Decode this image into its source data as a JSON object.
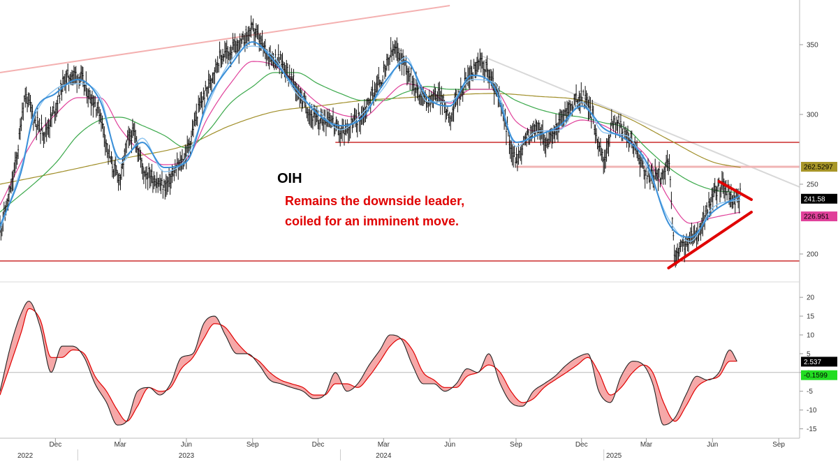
{
  "annotation": {
    "ticker": "OIH",
    "line1": "Remains the downside leader,",
    "line2": "coiled for an imminent move."
  },
  "colors": {
    "price": "#111111",
    "ma_fast": "#3a8fd8",
    "ma_fast2": "#8cc4f0",
    "ma_pink": "#e0409a",
    "ma_green": "#3aa84a",
    "ma_olive": "#a08e28",
    "levels": "#c00000",
    "trend": "#f4b0b0",
    "pattern": "#e00000",
    "osc_line": "#222222",
    "osc_signal": "#e00000",
    "osc_fill": "#f6a8a8"
  },
  "chart_data": [
    {
      "type": "line",
      "name": "price-panel",
      "ylim": [
        182,
        378
      ],
      "yticks": [
        200,
        250,
        300,
        350
      ],
      "x_range": [
        "2022-09-15",
        "2025-09-30"
      ],
      "x_ticks": [
        {
          "date": "2022-12-01",
          "label": "Dec"
        },
        {
          "date": "2023-03-01",
          "label": "Mar"
        },
        {
          "date": "2023-06-01",
          "label": "Jun"
        },
        {
          "date": "2023-09-01",
          "label": "Sep"
        },
        {
          "date": "2023-12-01",
          "label": "Dec"
        },
        {
          "date": "2024-03-01",
          "label": "Mar"
        },
        {
          "date": "2024-06-01",
          "label": "Jun"
        },
        {
          "date": "2024-09-01",
          "label": "Sep"
        },
        {
          "date": "2024-12-01",
          "label": "Dec"
        },
        {
          "date": "2025-03-01",
          "label": "Mar"
        },
        {
          "date": "2025-06-01",
          "label": "Jun"
        },
        {
          "date": "2025-09-01",
          "label": "Sep"
        }
      ],
      "years": [
        {
          "date": "2022-10-20",
          "label": "2022"
        },
        {
          "date": "2023-06-01",
          "label": "2023"
        },
        {
          "date": "2024-03-01",
          "label": "2024"
        },
        {
          "date": "2025-01-15",
          "label": "2025"
        }
      ],
      "price_series": {
        "dates": [
          "2022-09-15",
          "2022-10-01",
          "2022-10-10",
          "2022-10-20",
          "2022-11-01",
          "2022-11-15",
          "2022-12-01",
          "2022-12-15",
          "2023-01-01",
          "2023-01-15",
          "2023-02-01",
          "2023-02-15",
          "2023-03-01",
          "2023-03-10",
          "2023-03-20",
          "2023-04-01",
          "2023-04-15",
          "2023-05-01",
          "2023-05-15",
          "2023-06-01",
          "2023-06-15",
          "2023-07-01",
          "2023-07-15",
          "2023-08-01",
          "2023-08-15",
          "2023-09-01",
          "2023-09-15",
          "2023-10-01",
          "2023-10-15",
          "2023-11-01",
          "2023-11-15",
          "2023-12-01",
          "2023-12-15",
          "2024-01-01",
          "2024-01-15",
          "2024-02-01",
          "2024-02-15",
          "2024-03-01",
          "2024-03-15",
          "2024-04-01",
          "2024-04-15",
          "2024-05-01",
          "2024-05-15",
          "2024-06-01",
          "2024-06-15",
          "2024-07-01",
          "2024-07-15",
          "2024-08-01",
          "2024-08-15",
          "2024-09-01",
          "2024-09-15",
          "2024-10-01",
          "2024-10-15",
          "2024-11-01",
          "2024-11-15",
          "2024-12-01",
          "2024-12-15",
          "2025-01-01",
          "2025-01-15",
          "2025-02-01",
          "2025-02-15",
          "2025-03-01",
          "2025-03-15",
          "2025-04-01",
          "2025-04-10",
          "2025-04-20",
          "2025-05-01",
          "2025-05-15",
          "2025-06-01",
          "2025-06-15",
          "2025-07-01",
          "2025-07-10"
        ],
        "values": [
          218,
          248,
          275,
          312,
          298,
          288,
          305,
          325,
          328,
          315,
          300,
          268,
          255,
          278,
          285,
          262,
          255,
          248,
          258,
          272,
          298,
          320,
          338,
          345,
          350,
          360,
          348,
          340,
          335,
          318,
          305,
          295,
          298,
          287,
          292,
          300,
          315,
          328,
          345,
          335,
          320,
          310,
          314,
          300,
          315,
          330,
          336,
          320,
          298,
          268,
          282,
          290,
          280,
          295,
          305,
          312,
          300,
          268,
          295,
          285,
          275,
          258,
          255,
          262,
          198,
          205,
          210,
          218,
          240,
          248,
          238,
          242
        ]
      },
      "moving_averages": {
        "ma_fast": {
          "dates": [
            "2022-09-15",
            "2022-10-15",
            "2022-11-01",
            "2022-12-01",
            "2023-01-01",
            "2023-02-01",
            "2023-03-01",
            "2023-04-01",
            "2023-05-01",
            "2023-06-01",
            "2023-07-01",
            "2023-08-01",
            "2023-09-01",
            "2023-10-01",
            "2023-11-01",
            "2023-12-01",
            "2024-01-01",
            "2024-02-01",
            "2024-03-01",
            "2024-04-01",
            "2024-05-01",
            "2024-06-01",
            "2024-07-01",
            "2024-08-01",
            "2024-09-01",
            "2024-10-01",
            "2024-11-01",
            "2024-12-01",
            "2025-01-01",
            "2025-02-01",
            "2025-03-01",
            "2025-04-01",
            "2025-05-01",
            "2025-06-01",
            "2025-07-10"
          ],
          "values": [
            220,
            260,
            300,
            315,
            325,
            310,
            268,
            280,
            262,
            266,
            310,
            335,
            352,
            338,
            318,
            300,
            292,
            298,
            322,
            338,
            312,
            306,
            328,
            320,
            280,
            285,
            292,
            306,
            290,
            282,
            266,
            222,
            212,
            230,
            242
          ]
        },
        "ma_pink": {
          "dates": [
            "2022-09-15",
            "2022-11-01",
            "2022-12-01",
            "2023-01-01",
            "2023-02-01",
            "2023-03-01",
            "2023-04-01",
            "2023-05-01",
            "2023-06-01",
            "2023-07-01",
            "2023-08-01",
            "2023-09-01",
            "2023-10-01",
            "2023-11-01",
            "2023-12-01",
            "2024-01-01",
            "2024-02-01",
            "2024-03-01",
            "2024-04-01",
            "2024-05-01",
            "2024-06-01",
            "2024-07-01",
            "2024-08-01",
            "2024-09-01",
            "2024-10-01",
            "2024-11-01",
            "2024-12-01",
            "2025-01-01",
            "2025-02-01",
            "2025-03-01",
            "2025-04-01",
            "2025-05-01",
            "2025-06-01",
            "2025-07-10"
          ],
          "values": [
            235,
            282,
            300,
            312,
            312,
            290,
            272,
            264,
            268,
            298,
            322,
            338,
            335,
            322,
            308,
            300,
            298,
            310,
            322,
            318,
            308,
            318,
            318,
            295,
            288,
            290,
            296,
            292,
            282,
            270,
            240,
            222,
            226,
            230
          ]
        },
        "ma_green": {
          "dates": [
            "2022-09-15",
            "2022-12-01",
            "2023-01-01",
            "2023-02-01",
            "2023-03-01",
            "2023-04-01",
            "2023-05-01",
            "2023-06-01",
            "2023-07-01",
            "2023-08-01",
            "2023-09-01",
            "2023-10-01",
            "2023-11-01",
            "2023-12-01",
            "2024-01-01",
            "2024-02-01",
            "2024-03-01",
            "2024-04-01",
            "2024-05-01",
            "2024-06-01",
            "2024-07-01",
            "2024-08-01",
            "2024-09-01",
            "2024-10-01",
            "2024-11-01",
            "2024-12-01",
            "2025-01-01",
            "2025-02-01",
            "2025-03-01",
            "2025-04-01",
            "2025-05-01",
            "2025-06-01",
            "2025-07-10"
          ],
          "values": [
            230,
            265,
            285,
            296,
            298,
            292,
            285,
            276,
            288,
            308,
            320,
            330,
            330,
            322,
            315,
            310,
            310,
            316,
            320,
            318,
            318,
            318,
            310,
            304,
            300,
            298,
            294,
            290,
            276,
            262,
            252,
            246,
            244
          ]
        },
        "ma_olive": {
          "dates": [
            "2022-09-15",
            "2022-12-01",
            "2023-03-01",
            "2023-06-01",
            "2023-08-01",
            "2023-10-01",
            "2023-12-01",
            "2024-02-01",
            "2024-04-01",
            "2024-06-01",
            "2024-08-01",
            "2024-10-01",
            "2024-12-01",
            "2025-02-01",
            "2025-04-01",
            "2025-06-01",
            "2025-07-10"
          ],
          "values": [
            250,
            258,
            268,
            278,
            292,
            302,
            306,
            310,
            312,
            314,
            315,
            313,
            310,
            298,
            282,
            266,
            262
          ]
        }
      },
      "levels": [
        {
          "value": 280,
          "start": "2023-12-25",
          "color": "#c00000"
        },
        {
          "value": 262.5,
          "start": "2024-09-01",
          "color": "#f0b4b4"
        },
        {
          "value": 195,
          "start": "2022-09-15",
          "color": "#c00000"
        }
      ],
      "trendlines": [
        {
          "from": [
            "2022-09-15",
            330
          ],
          "to": [
            "2024-06-01",
            378
          ],
          "color": "#f4b0b0"
        },
        {
          "from": [
            "2024-07-15",
            342
          ],
          "to": [
            "2025-09-30",
            248
          ],
          "color": "#d8d8d8"
        }
      ],
      "pattern_lines": [
        {
          "from": [
            "2025-06-10",
            252
          ],
          "to": [
            "2025-07-25",
            239
          ]
        },
        {
          "from": [
            "2025-04-01",
            190
          ],
          "to": [
            "2025-07-25",
            230
          ]
        }
      ],
      "value_flags": [
        {
          "label": "262.5297",
          "value": 262.5,
          "bg": "#a89628",
          "fg": "#000000"
        },
        {
          "label": "241.58",
          "value": 241.6,
          "bg": "#000000",
          "fg": "#ffffff"
        },
        {
          "label": "226.951",
          "value": 226.95,
          "bg": "#e0409a",
          "fg": "#000000"
        }
      ]
    },
    {
      "type": "line",
      "name": "oscillator-panel",
      "ylim": [
        -17.5,
        23
      ],
      "yticks": [
        -15,
        -10,
        -5,
        0,
        5,
        10,
        15,
        20
      ],
      "zero_line": 0,
      "main": {
        "dates": [
          "2022-09-15",
          "2022-10-01",
          "2022-10-15",
          "2022-10-25",
          "2022-11-10",
          "2022-11-25",
          "2022-12-10",
          "2022-12-25",
          "2023-01-10",
          "2023-01-25",
          "2023-02-10",
          "2023-02-25",
          "2023-03-10",
          "2023-03-25",
          "2023-04-10",
          "2023-04-25",
          "2023-05-10",
          "2023-05-25",
          "2023-06-10",
          "2023-06-25",
          "2023-07-10",
          "2023-07-25",
          "2023-08-10",
          "2023-08-25",
          "2023-09-10",
          "2023-09-25",
          "2023-10-10",
          "2023-10-25",
          "2023-11-10",
          "2023-11-25",
          "2023-12-10",
          "2023-12-25",
          "2024-01-10",
          "2024-01-25",
          "2024-02-10",
          "2024-02-25",
          "2024-03-10",
          "2024-03-25",
          "2024-04-10",
          "2024-04-25",
          "2024-05-10",
          "2024-05-25",
          "2024-06-10",
          "2024-06-25",
          "2024-07-10",
          "2024-07-25",
          "2024-08-10",
          "2024-08-25",
          "2024-09-10",
          "2024-09-25",
          "2024-10-10",
          "2024-10-25",
          "2024-11-10",
          "2024-11-25",
          "2024-12-10",
          "2024-12-25",
          "2025-01-10",
          "2025-01-25",
          "2025-02-10",
          "2025-02-25",
          "2025-03-10",
          "2025-03-25",
          "2025-04-10",
          "2025-04-25",
          "2025-05-10",
          "2025-05-25",
          "2025-06-10",
          "2025-06-25",
          "2025-07-05"
        ],
        "values": [
          -5,
          8,
          16,
          19,
          12,
          0,
          7,
          7,
          4,
          -3,
          -8,
          -14,
          -13,
          -5,
          -4,
          -6,
          -3,
          4,
          5,
          13,
          15,
          10,
          5,
          5,
          2,
          -2,
          -3,
          -4,
          -5,
          -7,
          -6,
          0,
          -5,
          -3,
          2,
          6,
          10,
          9,
          2,
          -3,
          -3,
          -5,
          -3,
          1,
          0,
          5,
          -3,
          -8,
          -9,
          -5,
          -3,
          -1,
          2,
          4,
          5,
          -5,
          -8,
          -1,
          3,
          2,
          -3,
          -14,
          -12,
          -6,
          -1,
          -2,
          0,
          6,
          3
        ]
      },
      "signal": {
        "dates": [
          "2022-09-15",
          "2022-10-01",
          "2022-10-15",
          "2022-10-25",
          "2022-11-10",
          "2022-11-25",
          "2022-12-10",
          "2022-12-25",
          "2023-01-10",
          "2023-01-25",
          "2023-02-10",
          "2023-02-25",
          "2023-03-10",
          "2023-03-25",
          "2023-04-10",
          "2023-04-25",
          "2023-05-10",
          "2023-05-25",
          "2023-06-10",
          "2023-06-25",
          "2023-07-10",
          "2023-07-25",
          "2023-08-10",
          "2023-08-25",
          "2023-09-10",
          "2023-09-25",
          "2023-10-10",
          "2023-10-25",
          "2023-11-10",
          "2023-11-25",
          "2023-12-10",
          "2023-12-25",
          "2024-01-10",
          "2024-01-25",
          "2024-02-10",
          "2024-02-25",
          "2024-03-10",
          "2024-03-25",
          "2024-04-10",
          "2024-04-25",
          "2024-05-10",
          "2024-05-25",
          "2024-06-10",
          "2024-06-25",
          "2024-07-10",
          "2024-07-25",
          "2024-08-10",
          "2024-08-25",
          "2024-09-10",
          "2024-09-25",
          "2024-10-10",
          "2024-10-25",
          "2024-11-10",
          "2024-11-25",
          "2024-12-10",
          "2024-12-25",
          "2025-01-10",
          "2025-01-25",
          "2025-02-10",
          "2025-02-25",
          "2025-03-10",
          "2025-03-25",
          "2025-04-10",
          "2025-04-25",
          "2025-05-10",
          "2025-05-25",
          "2025-06-10",
          "2025-06-25",
          "2025-07-05"
        ],
        "values": [
          -6,
          3,
          11,
          17,
          14,
          4,
          4,
          6,
          5,
          -1,
          -5,
          -10,
          -13,
          -9,
          -4,
          -5,
          -4,
          1,
          4,
          9,
          13,
          12,
          8,
          5,
          3,
          0,
          -2,
          -3,
          -4,
          -6,
          -6,
          -3,
          -3,
          -4,
          -1,
          3,
          7,
          9,
          6,
          0,
          -2,
          -4,
          -4,
          -1,
          0,
          2,
          0,
          -5,
          -8,
          -7,
          -4,
          -2,
          0,
          2,
          4,
          0,
          -6,
          -4,
          0,
          2,
          0,
          -8,
          -13,
          -9,
          -4,
          -2,
          -1,
          3,
          3
        ]
      },
      "value_flags": [
        {
          "label": "2.537",
          "value": 2.5,
          "bg": "#000000",
          "fg": "#ffffff"
        },
        {
          "label": "-0.1599",
          "value": -0.16,
          "bg": "#22dd22",
          "fg": "#000000"
        }
      ]
    }
  ]
}
